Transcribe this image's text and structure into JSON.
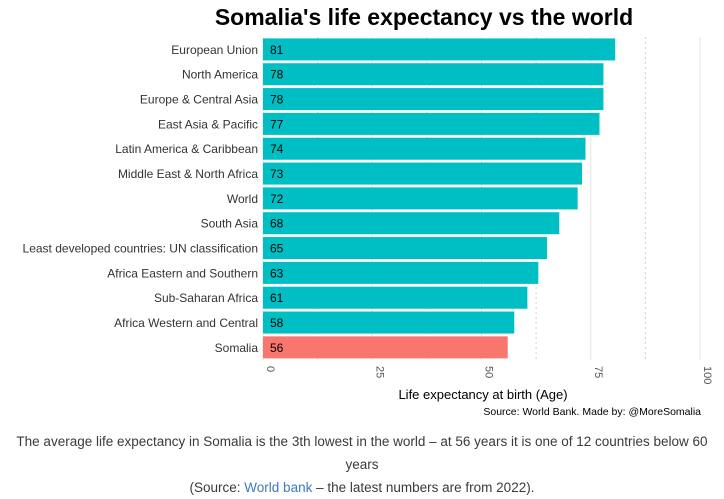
{
  "chart_data": {
    "type": "bar",
    "orientation": "horizontal",
    "title": "Somalia's life expectancy vs the world",
    "categories": [
      "European Union",
      "North America",
      "Europe & Central Asia",
      "East Asia & Pacific",
      "Latin America & Caribbean",
      "Middle East & North Africa",
      "World",
      "South Asia",
      "Least developed countries: UN classification",
      "Africa Eastern and Southern",
      "Sub-Saharan Africa",
      "Africa Western and Central",
      "Somalia"
    ],
    "values": [
      80.6,
      77.9,
      77.9,
      77.0,
      73.8,
      73.0,
      72.0,
      67.8,
      65.0,
      63.0,
      60.5,
      57.5,
      56.0
    ],
    "value_labels": [
      "81",
      "78",
      "78",
      "77",
      "74",
      "73",
      "72",
      "68",
      "65",
      "63",
      "61",
      "58",
      "56"
    ],
    "xlabel": "Life expectancy at birth (Age)",
    "ylabel": "",
    "xlim": [
      0,
      100
    ],
    "xticks": [
      0,
      25,
      50,
      75,
      100
    ],
    "tick_labels": [
      "0",
      "25",
      "50",
      "75",
      "100"
    ],
    "source": "Source: World Bank. Made by: @MoreSomalia",
    "colors": {
      "default": "#00bfc4",
      "highlight": "#f8766d",
      "highlight_category": "Somalia"
    },
    "grid": true
  },
  "caption": {
    "line1": "The average life expectancy in Somalia is the 3th lowest in the world – at 56 years it is one of 12 countries below 60 years",
    "line2_prefix": "(Source: ",
    "link_text": "World bank",
    "line2_suffix": " – the latest numbers are from 2022)."
  }
}
